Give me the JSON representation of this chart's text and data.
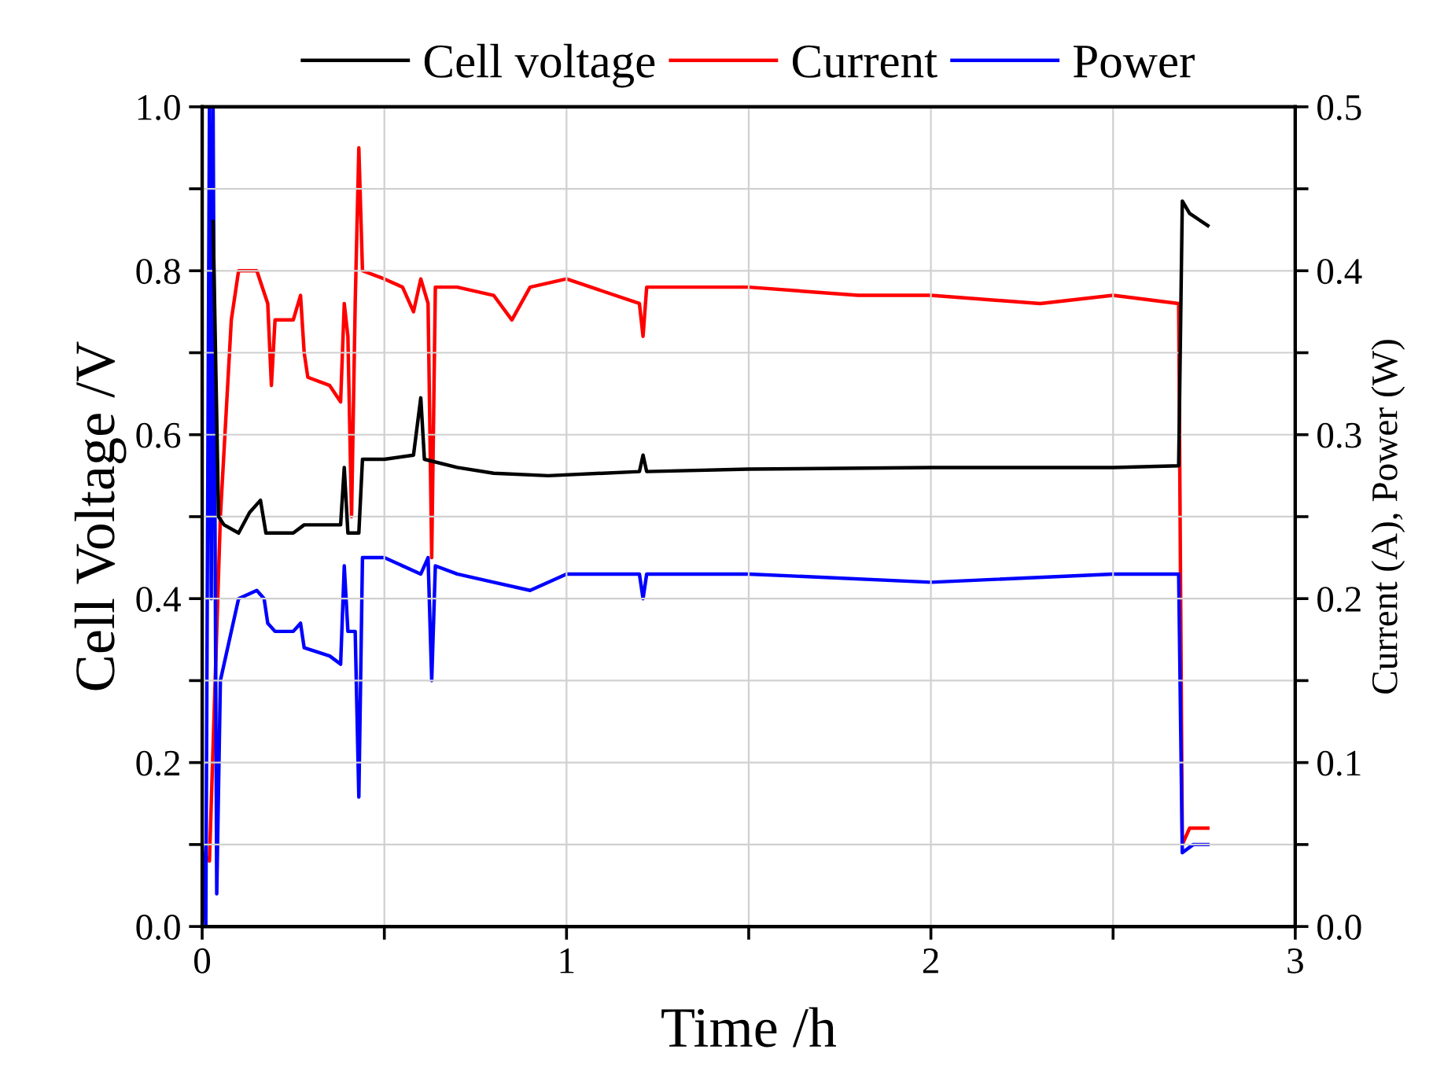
{
  "chart_data": {
    "type": "line",
    "xlabel": "Time /h",
    "ylabel": "Cell Voltage /V",
    "y2label": "Current (A), Power (W)",
    "xlim": [
      0,
      3
    ],
    "xticks": [
      0,
      {
        "value": 0.5,
        "label": null
      },
      1,
      {
        "value": 1.5,
        "label": null
      },
      2,
      {
        "value": 2.5,
        "label": null
      },
      3
    ],
    "ylim": [
      0,
      1
    ],
    "yticks": [
      {
        "value": 0,
        "label": "0.0"
      },
      {
        "value": 0.1,
        "label": null
      },
      0.2,
      {
        "value": 0.3,
        "label": null
      },
      0.4,
      {
        "value": 0.5,
        "label": null
      },
      0.6,
      {
        "value": 0.7,
        "label": null
      },
      0.8,
      {
        "value": 0.9,
        "label": null
      },
      {
        "value": 1,
        "label": "1.0"
      }
    ],
    "y2lim": [
      0,
      0.5
    ],
    "y2ticks": [
      {
        "value": 0,
        "label": "0.0"
      },
      {
        "value": 0.05,
        "label": null
      },
      0.1,
      {
        "value": 0.15,
        "label": null
      },
      0.2,
      {
        "value": 0.25,
        "label": null
      },
      0.3,
      {
        "value": 0.35,
        "label": null
      },
      0.4,
      {
        "value": 0.45,
        "label": null
      },
      0.5
    ],
    "grid": true,
    "legend": "top",
    "line_style": "solid",
    "marker": "none",
    "series": [
      {
        "name": "Cell voltage",
        "color": "#000000",
        "x": [
          0.03,
          0.045,
          0.06,
          0.1,
          0.13,
          0.16,
          0.175,
          0.25,
          0.28,
          0.38,
          0.39,
          0.4,
          0.43,
          0.44,
          0.5,
          0.58,
          0.6,
          0.61,
          0.7,
          0.8,
          0.95,
          1.2,
          1.21,
          1.22,
          1.5,
          2.0,
          2.5,
          2.68,
          2.69,
          2.71,
          2.76
        ],
        "values": [
          0.86,
          0.5,
          0.49,
          0.48,
          0.505,
          0.52,
          0.48,
          0.48,
          0.49,
          0.49,
          0.56,
          0.48,
          0.48,
          0.57,
          0.57,
          0.575,
          0.645,
          0.57,
          0.56,
          0.553,
          0.55,
          0.555,
          0.575,
          0.555,
          0.558,
          0.56,
          0.56,
          0.562,
          0.885,
          0.87,
          0.855
        ]
      },
      {
        "name": "Current",
        "color": "#ff0000",
        "axis": "y2",
        "x": [
          0.0,
          0.02,
          0.05,
          0.08,
          0.1,
          0.15,
          0.18,
          0.19,
          0.2,
          0.25,
          0.27,
          0.28,
          0.29,
          0.35,
          0.38,
          0.39,
          0.4,
          0.41,
          0.42,
          0.43,
          0.44,
          0.5,
          0.55,
          0.58,
          0.6,
          0.62,
          0.63,
          0.64,
          0.7,
          0.8,
          0.85,
          0.9,
          1.0,
          1.2,
          1.21,
          1.22,
          1.5,
          1.8,
          2.0,
          2.3,
          2.5,
          2.68,
          2.69,
          2.71,
          2.74,
          2.76
        ],
        "values": [
          0.045,
          0.04,
          0.25,
          0.37,
          0.4,
          0.4,
          0.38,
          0.33,
          0.37,
          0.37,
          0.385,
          0.35,
          0.335,
          0.33,
          0.32,
          0.38,
          0.36,
          0.25,
          0.38,
          0.475,
          0.4,
          0.395,
          0.39,
          0.375,
          0.395,
          0.38,
          0.225,
          0.39,
          0.39,
          0.385,
          0.37,
          0.39,
          0.395,
          0.38,
          0.36,
          0.39,
          0.39,
          0.385,
          0.385,
          0.38,
          0.385,
          0.38,
          0.05,
          0.06,
          0.06,
          0.06
        ]
      },
      {
        "name": "Power",
        "color": "#0000ff",
        "axis": "y2",
        "x": [
          0.0,
          0.01,
          0.02,
          0.025,
          0.03,
          0.04,
          0.05,
          0.08,
          0.1,
          0.15,
          0.17,
          0.18,
          0.2,
          0.25,
          0.27,
          0.28,
          0.35,
          0.38,
          0.39,
          0.4,
          0.42,
          0.43,
          0.44,
          0.5,
          0.6,
          0.62,
          0.63,
          0.64,
          0.7,
          0.8,
          0.9,
          1.0,
          1.2,
          1.21,
          1.22,
          1.5,
          2.0,
          2.5,
          2.68,
          2.69,
          2.72,
          2.76
        ],
        "values": [
          0.05,
          0.0,
          0.5,
          0.2,
          0.5,
          0.02,
          0.15,
          0.18,
          0.2,
          0.205,
          0.2,
          0.185,
          0.18,
          0.18,
          0.185,
          0.17,
          0.165,
          0.16,
          0.22,
          0.18,
          0.18,
          0.079,
          0.225,
          0.225,
          0.215,
          0.225,
          0.15,
          0.22,
          0.215,
          0.21,
          0.205,
          0.215,
          0.215,
          0.2,
          0.215,
          0.215,
          0.21,
          0.215,
          0.215,
          0.045,
          0.05,
          0.05
        ]
      }
    ]
  }
}
